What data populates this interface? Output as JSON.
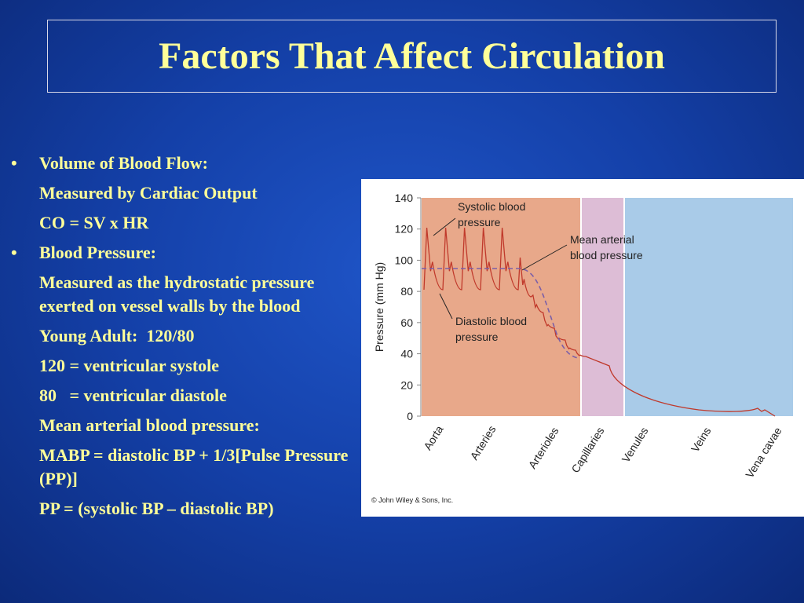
{
  "title": "Factors That Affect Circulation",
  "bullets": [
    {
      "text": "Volume of Blood Flow:",
      "lines": [
        "Measured by Cardiac Output",
        "CO = SV x HR"
      ]
    },
    {
      "text": "Blood Pressure:",
      "lines": [
        "Measured as the hydrostatic pressure exerted on vessel walls by the blood",
        "Young Adult:  120/80",
        "120 = ventricular systole",
        "80   = ventricular diastole",
        "Mean arterial blood pressure:",
        "MABP = diastolic BP + 1/3[Pulse Pressure (PP)]",
        "PP = (systolic BP – diastolic BP)"
      ]
    }
  ],
  "figure": {
    "ylabel": "Pressure (mm Hg)",
    "ylim": [
      0,
      140
    ],
    "yticks": [
      0,
      20,
      40,
      60,
      80,
      100,
      120,
      140
    ],
    "categories": [
      "Aorta",
      "Arteries",
      "Arterioles",
      "Capillaries",
      "Venules",
      "Veins",
      "Vena cavae"
    ],
    "annotations": [
      [
        "Systolic blood",
        "pressure"
      ],
      [
        "Mean arterial",
        "blood pressure"
      ],
      [
        "Diastolic blood",
        "pressure"
      ]
    ],
    "credit": "© John Wiley & Sons, Inc."
  }
}
